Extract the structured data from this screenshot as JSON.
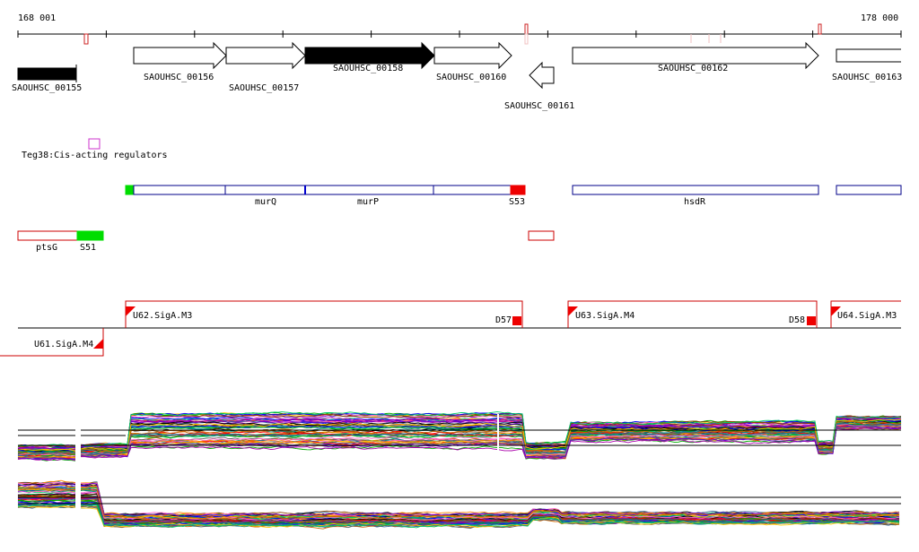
{
  "ruler": {
    "start_label": "168 001",
    "end_label": "178 000"
  },
  "genes": [
    {
      "id": "SAOUHSC_00155",
      "label": "SAOUHSC_00155",
      "strand": "none",
      "filled": true
    },
    {
      "id": "SAOUHSC_00156",
      "label": "SAOUHSC_00156",
      "strand": "+",
      "filled": false
    },
    {
      "id": "SAOUHSC_00157",
      "label": "SAOUHSC_00157",
      "strand": "+",
      "filled": false
    },
    {
      "id": "SAOUHSC_00158",
      "label": "SAOUHSC_00158",
      "strand": "+",
      "filled": true
    },
    {
      "id": "SAOUHSC_00160",
      "label": "SAOUHSC_00160",
      "strand": "+",
      "filled": false
    },
    {
      "id": "SAOUHSC_00161",
      "label": "SAOUHSC_00161",
      "strand": "-",
      "filled": false
    },
    {
      "id": "SAOUHSC_00162",
      "label": "SAOUHSC_00162",
      "strand": "+",
      "filled": false
    },
    {
      "id": "SAOUHSC_00163",
      "label": "SAOUHSC_00163",
      "strand": "+",
      "filled": false
    }
  ],
  "regulator": {
    "label": "Teg38:Cis-acting regulators",
    "color": "#cc33cc"
  },
  "operons": [
    {
      "label": "murQ"
    },
    {
      "label": "murP"
    },
    {
      "label": "S53"
    },
    {
      "label": "hsdR"
    },
    {
      "label": "ptsG"
    },
    {
      "label": "S51"
    }
  ],
  "promoters": [
    {
      "label": "U62.SigA.M3"
    },
    {
      "label": "D57"
    },
    {
      "label": "U63.SigA.M4"
    },
    {
      "label": "D58"
    },
    {
      "label": "U64.SigA.M3"
    },
    {
      "label": "U61.SigA.M4"
    }
  ],
  "colors": {
    "operon_outline": "#000088",
    "operon_alt_outline": "#cc0000",
    "sig_green": "#00dd00",
    "sig_red": "#ee0000",
    "promoter_line": "#cc0000",
    "ruler": "#000000",
    "ruler_marker": "#cc2222"
  },
  "expression": {
    "profile_count": 60,
    "series_colors": [
      "#000000",
      "#ff0000",
      "#0000ff",
      "#00aa00",
      "#ff8800",
      "#aa00aa",
      "#008888",
      "#884400",
      "#ff66cc",
      "#666666",
      "#ffcc00",
      "#6600cc",
      "#00cc66",
      "#cc6600",
      "#336699"
    ]
  }
}
